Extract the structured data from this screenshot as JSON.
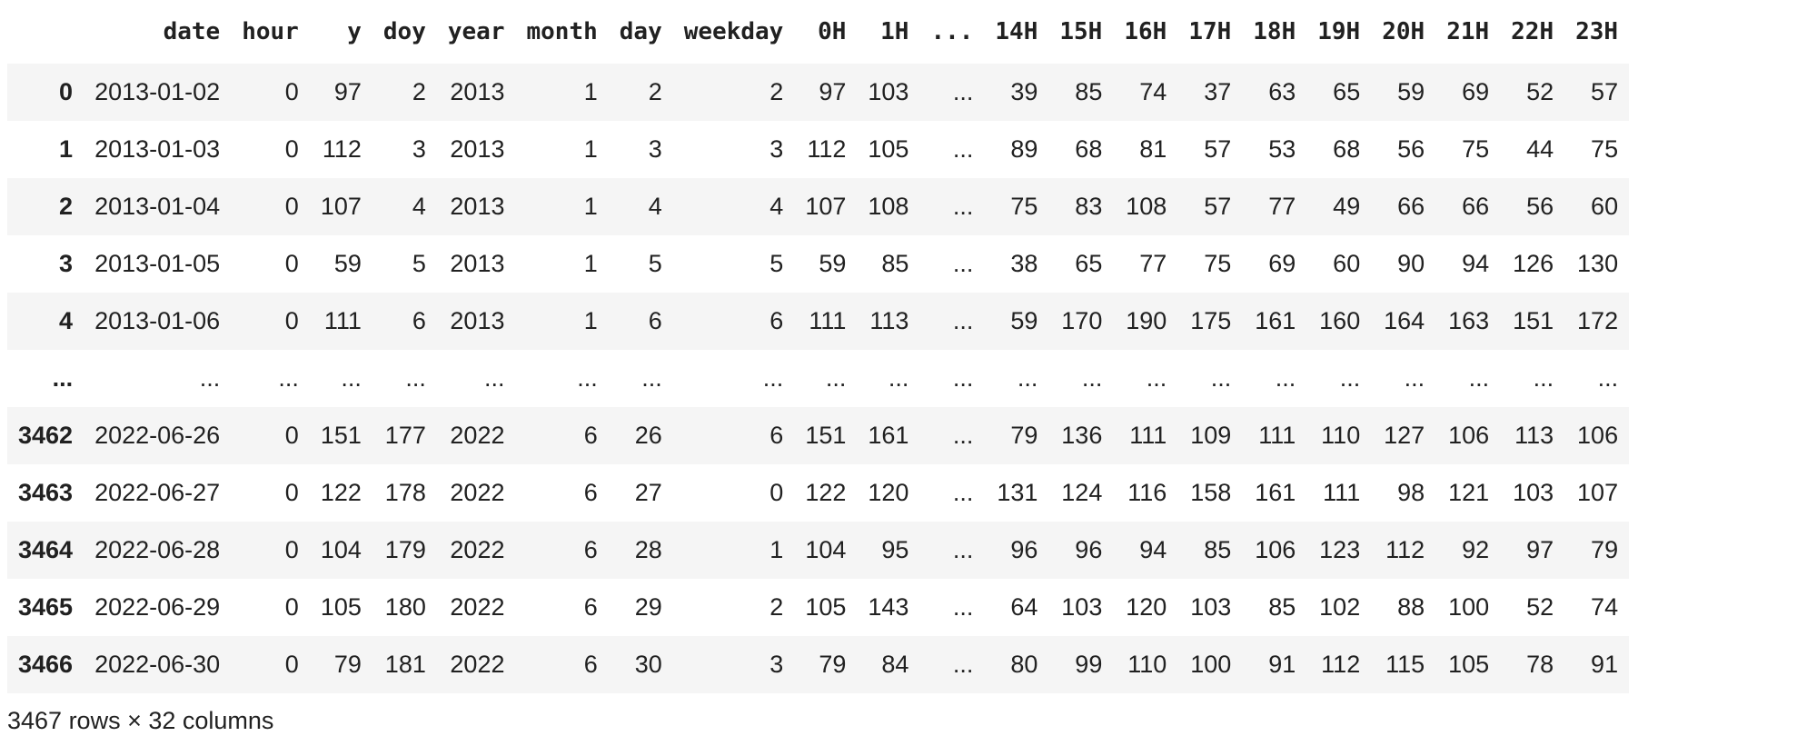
{
  "dataframe": {
    "columns": [
      "",
      "date",
      "hour",
      "y",
      "doy",
      "year",
      "month",
      "day",
      "weekday",
      "0H",
      "1H",
      "...",
      "14H",
      "15H",
      "16H",
      "17H",
      "18H",
      "19H",
      "20H",
      "21H",
      "22H",
      "23H"
    ],
    "rows": [
      [
        "0",
        "2013-01-02",
        "0",
        "97",
        "2",
        "2013",
        "1",
        "2",
        "2",
        "97",
        "103",
        "...",
        "39",
        "85",
        "74",
        "37",
        "63",
        "65",
        "59",
        "69",
        "52",
        "57"
      ],
      [
        "1",
        "2013-01-03",
        "0",
        "112",
        "3",
        "2013",
        "1",
        "3",
        "3",
        "112",
        "105",
        "...",
        "89",
        "68",
        "81",
        "57",
        "53",
        "68",
        "56",
        "75",
        "44",
        "75"
      ],
      [
        "2",
        "2013-01-04",
        "0",
        "107",
        "4",
        "2013",
        "1",
        "4",
        "4",
        "107",
        "108",
        "...",
        "75",
        "83",
        "108",
        "57",
        "77",
        "49",
        "66",
        "66",
        "56",
        "60"
      ],
      [
        "3",
        "2013-01-05",
        "0",
        "59",
        "5",
        "2013",
        "1",
        "5",
        "5",
        "59",
        "85",
        "...",
        "38",
        "65",
        "77",
        "75",
        "69",
        "60",
        "90",
        "94",
        "126",
        "130"
      ],
      [
        "4",
        "2013-01-06",
        "0",
        "111",
        "6",
        "2013",
        "1",
        "6",
        "6",
        "111",
        "113",
        "...",
        "59",
        "170",
        "190",
        "175",
        "161",
        "160",
        "164",
        "163",
        "151",
        "172"
      ],
      [
        "...",
        "...",
        "...",
        "...",
        "...",
        "...",
        "...",
        "...",
        "...",
        "...",
        "...",
        "...",
        "...",
        "...",
        "...",
        "...",
        "...",
        "...",
        "...",
        "...",
        "...",
        "..."
      ],
      [
        "3462",
        "2022-06-26",
        "0",
        "151",
        "177",
        "2022",
        "6",
        "26",
        "6",
        "151",
        "161",
        "...",
        "79",
        "136",
        "111",
        "109",
        "111",
        "110",
        "127",
        "106",
        "113",
        "106"
      ],
      [
        "3463",
        "2022-06-27",
        "0",
        "122",
        "178",
        "2022",
        "6",
        "27",
        "0",
        "122",
        "120",
        "...",
        "131",
        "124",
        "116",
        "158",
        "161",
        "111",
        "98",
        "121",
        "103",
        "107"
      ],
      [
        "3464",
        "2022-06-28",
        "0",
        "104",
        "179",
        "2022",
        "6",
        "28",
        "1",
        "104",
        "95",
        "...",
        "96",
        "96",
        "94",
        "85",
        "106",
        "123",
        "112",
        "92",
        "97",
        "79"
      ],
      [
        "3465",
        "2022-06-29",
        "0",
        "105",
        "180",
        "2022",
        "6",
        "29",
        "2",
        "105",
        "143",
        "...",
        "64",
        "103",
        "120",
        "103",
        "85",
        "102",
        "88",
        "100",
        "52",
        "74"
      ],
      [
        "3466",
        "2022-06-30",
        "0",
        "79",
        "181",
        "2022",
        "6",
        "30",
        "3",
        "79",
        "84",
        "...",
        "80",
        "99",
        "110",
        "100",
        "91",
        "112",
        "115",
        "105",
        "78",
        "91"
      ]
    ],
    "shape_label": "3467 rows × 32 columns"
  },
  "colors": {
    "stripe": "#f5f5f5",
    "text": "#212121"
  }
}
